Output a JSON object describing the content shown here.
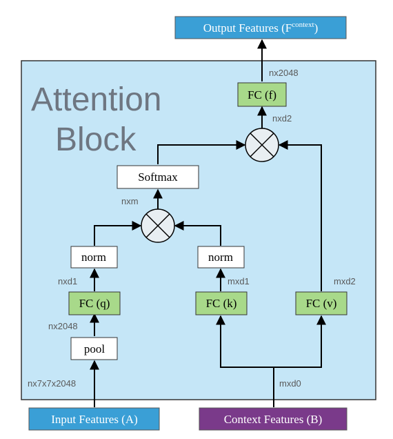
{
  "block_title_line1": "Attention",
  "block_title_line2": "Block",
  "output": {
    "label": "Output Features (F",
    "superscript": "context",
    "close": ")"
  },
  "input_a": "Input Features (A)",
  "context_b": "Context Features (B)",
  "nodes": {
    "fc_f": "FC (f)",
    "softmax": "Softmax",
    "norm_q": "norm",
    "norm_k": "norm",
    "fc_q": "FC (q)",
    "fc_k": "FC (k)",
    "fc_v": "FC (v)",
    "pool": "pool"
  },
  "dims": {
    "out_fc_f": "nx2048",
    "fc_f_in": "nxd2",
    "softmax_in": "nxm",
    "norm_q_in": "nxd1",
    "norm_k_in": "mxd1",
    "fc_v_out": "mxd2",
    "pool_out": "nx2048",
    "input": "nx7x7x2048",
    "context": "mxd0"
  },
  "colors": {
    "block_fill": "#c5e6f7",
    "io_blue": "#3a9fd6",
    "io_purple": "#7a3a8a",
    "fc_green": "#a8d98a"
  }
}
